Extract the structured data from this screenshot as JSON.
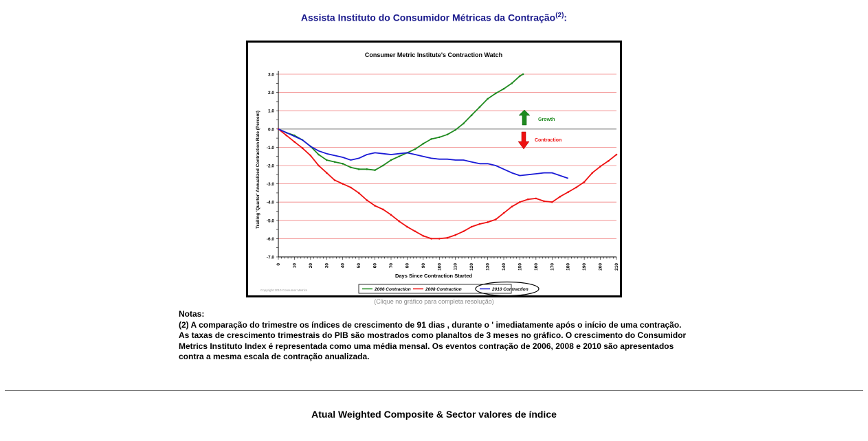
{
  "page": {
    "heading": "Assista Instituto do Consumidor Métricas da Contração",
    "heading_sup": "(2)",
    "heading_suffix": ":",
    "chart_caption": "(Clique no gráfico para completa resolução)",
    "notes_title": "Notas:",
    "notes_lines": [
      "(2) A comparação do trimestre os índices de crescimento de 91 dias , durante o ' imediatamente após o início de uma contração.",
      "As taxas de crescimento trimestrais do PIB são mostrados como planaltos de 3 meses no gráfico. O crescimento do Consumidor",
      "Metrics Instituto Index é representada como uma média mensal. Os eventos contração de 2006, 2008 e 2010 são apresentados",
      "contra a mesma escala de contração anualizada."
    ],
    "bottom_heading": "Atual Weighted Composite & Sector valores de índice"
  },
  "chart_data": {
    "type": "line",
    "title": "Consumer Metric Institute's Contraction Watch",
    "xlabel": "Days Since Contraction Started",
    "ylabel": "Trailing 'Quarter' Annualized Contraction Rate (Percent)",
    "xlim": [
      0,
      210
    ],
    "ylim": [
      -7.0,
      3.0
    ],
    "xticks": [
      "0",
      "10",
      "20",
      "30",
      "40",
      "50",
      "60",
      "70",
      "80",
      "90",
      "100",
      "110",
      "120",
      "130",
      "140",
      "150",
      "160",
      "170",
      "180",
      "190",
      "200",
      "210"
    ],
    "yticks": [
      "3.0",
      "2.0",
      "1.0",
      "0.0",
      "-1.0",
      "-2.0",
      "-3.0",
      "-4.0",
      "-5.0",
      "-6.0",
      "-7.0"
    ],
    "grid": true,
    "legend": "bottom-center",
    "annotations": {
      "up": "Growth",
      "down": "Contraction"
    },
    "copyright": "Copyright 2010 Consumer Metrics",
    "series": [
      {
        "name": "2006 Contraction",
        "color": "#1f8a1f",
        "points": [
          [
            0,
            0.0
          ],
          [
            5,
            -0.2
          ],
          [
            10,
            -0.35
          ],
          [
            15,
            -0.6
          ],
          [
            20,
            -0.95
          ],
          [
            25,
            -1.4
          ],
          [
            30,
            -1.7
          ],
          [
            35,
            -1.8
          ],
          [
            40,
            -1.9
          ],
          [
            45,
            -2.1
          ],
          [
            50,
            -2.2
          ],
          [
            55,
            -2.2
          ],
          [
            60,
            -2.25
          ],
          [
            65,
            -2.0
          ],
          [
            70,
            -1.7
          ],
          [
            75,
            -1.5
          ],
          [
            80,
            -1.3
          ],
          [
            85,
            -1.1
          ],
          [
            90,
            -0.8
          ],
          [
            95,
            -0.55
          ],
          [
            100,
            -0.45
          ],
          [
            105,
            -0.3
          ],
          [
            110,
            -0.05
          ],
          [
            115,
            0.3
          ],
          [
            120,
            0.75
          ],
          [
            125,
            1.2
          ],
          [
            130,
            1.65
          ],
          [
            135,
            1.95
          ],
          [
            140,
            2.2
          ],
          [
            145,
            2.5
          ],
          [
            150,
            2.9
          ],
          [
            152,
            3.0
          ]
        ]
      },
      {
        "name": "2008 Contraction",
        "color": "#ee1111",
        "points": [
          [
            0,
            0.0
          ],
          [
            5,
            -0.35
          ],
          [
            10,
            -0.7
          ],
          [
            15,
            -1.05
          ],
          [
            20,
            -1.45
          ],
          [
            25,
            -2.0
          ],
          [
            30,
            -2.4
          ],
          [
            35,
            -2.8
          ],
          [
            40,
            -3.0
          ],
          [
            45,
            -3.2
          ],
          [
            50,
            -3.5
          ],
          [
            55,
            -3.9
          ],
          [
            60,
            -4.2
          ],
          [
            65,
            -4.4
          ],
          [
            70,
            -4.7
          ],
          [
            75,
            -5.05
          ],
          [
            80,
            -5.35
          ],
          [
            85,
            -5.6
          ],
          [
            90,
            -5.85
          ],
          [
            95,
            -6.0
          ],
          [
            100,
            -6.0
          ],
          [
            105,
            -5.95
          ],
          [
            110,
            -5.8
          ],
          [
            115,
            -5.6
          ],
          [
            120,
            -5.35
          ],
          [
            125,
            -5.2
          ],
          [
            130,
            -5.1
          ],
          [
            135,
            -4.95
          ],
          [
            140,
            -4.6
          ],
          [
            145,
            -4.25
          ],
          [
            150,
            -4.0
          ],
          [
            155,
            -3.85
          ],
          [
            160,
            -3.8
          ],
          [
            165,
            -3.95
          ],
          [
            170,
            -4.0
          ],
          [
            175,
            -3.7
          ],
          [
            180,
            -3.45
          ],
          [
            185,
            -3.2
          ],
          [
            190,
            -2.9
          ],
          [
            195,
            -2.4
          ],
          [
            200,
            -2.05
          ],
          [
            205,
            -1.75
          ],
          [
            210,
            -1.4
          ]
        ]
      },
      {
        "name": "2010 Contraction",
        "color": "#1a1ad6",
        "points": [
          [
            0,
            0.0
          ],
          [
            5,
            -0.2
          ],
          [
            10,
            -0.4
          ],
          [
            15,
            -0.6
          ],
          [
            20,
            -0.95
          ],
          [
            25,
            -1.2
          ],
          [
            30,
            -1.35
          ],
          [
            35,
            -1.45
          ],
          [
            40,
            -1.55
          ],
          [
            45,
            -1.7
          ],
          [
            50,
            -1.6
          ],
          [
            55,
            -1.4
          ],
          [
            60,
            -1.3
          ],
          [
            65,
            -1.35
          ],
          [
            70,
            -1.4
          ],
          [
            75,
            -1.35
          ],
          [
            80,
            -1.3
          ],
          [
            85,
            -1.4
          ],
          [
            90,
            -1.5
          ],
          [
            95,
            -1.6
          ],
          [
            100,
            -1.65
          ],
          [
            105,
            -1.65
          ],
          [
            110,
            -1.7
          ],
          [
            115,
            -1.7
          ],
          [
            120,
            -1.8
          ],
          [
            125,
            -1.9
          ],
          [
            130,
            -1.9
          ],
          [
            135,
            -2.0
          ],
          [
            140,
            -2.2
          ],
          [
            145,
            -2.4
          ],
          [
            150,
            -2.55
          ],
          [
            155,
            -2.5
          ],
          [
            160,
            -2.45
          ],
          [
            165,
            -2.4
          ],
          [
            170,
            -2.4
          ],
          [
            175,
            -2.55
          ],
          [
            180,
            -2.7
          ]
        ]
      }
    ]
  }
}
